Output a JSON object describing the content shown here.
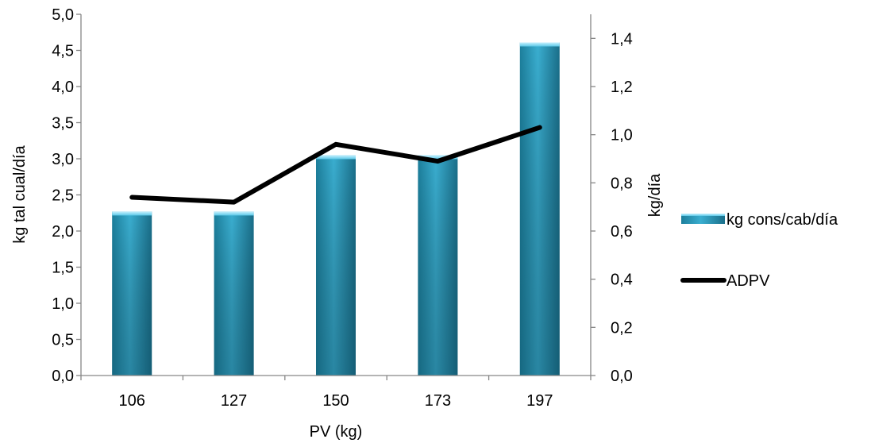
{
  "chart_data": {
    "type": "bar",
    "categories": [
      "106",
      "127",
      "150",
      "173",
      "197"
    ],
    "series": [
      {
        "name": "kg cons/cab/día",
        "type": "bar",
        "axis": "left",
        "values": [
          2.27,
          2.27,
          3.05,
          3.05,
          4.61
        ],
        "color": "#31a2c4"
      },
      {
        "name": "ADPV",
        "type": "line",
        "axis": "right",
        "values": [
          0.74,
          0.72,
          0.96,
          0.89,
          1.03
        ],
        "color": "#000000"
      }
    ],
    "xlabel": "PV (kg)",
    "ylabel_left": "kg tal cual/día",
    "ylabel_right": "kg/día",
    "ylim_left": [
      0,
      5
    ],
    "ylim_right": [
      0,
      1.5
    ],
    "yticks_left": [
      "0,0",
      "0,5",
      "1,0",
      "1,5",
      "2,0",
      "2,5",
      "3,0",
      "3,5",
      "4,0",
      "4,5",
      "5,0"
    ],
    "yticks_right": [
      "0,0",
      "0,2",
      "0,4",
      "0,6",
      "0,8",
      "1,0",
      "1,2",
      "1,4"
    ],
    "grid": false,
    "legend_position": "right"
  }
}
